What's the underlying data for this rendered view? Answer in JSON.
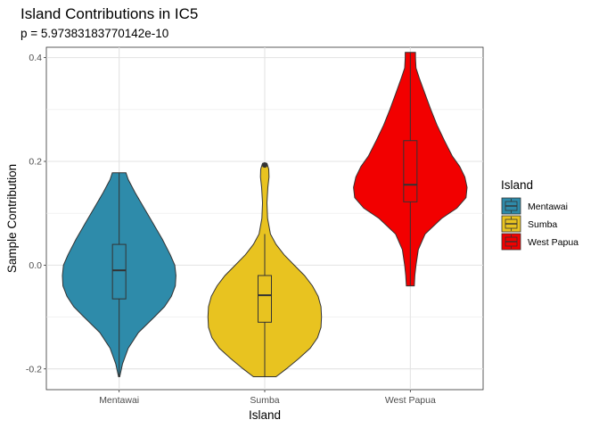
{
  "chart_data": {
    "type": "violin",
    "title": "Island Contributions in IC5",
    "subtitle": "p = 5.97383183770142e-10",
    "xlabel": "Island",
    "ylabel": "Sample Contribution",
    "ylim": [
      -0.24,
      0.42
    ],
    "yticks": [
      -0.2,
      0.0,
      0.2,
      0.4
    ],
    "ytick_labels": [
      "-0.2",
      "0.0",
      "0.2",
      "0.4"
    ],
    "grid": true,
    "legend": {
      "title": "Island",
      "placement": "right"
    },
    "categories": [
      "Mentawai",
      "Sumba",
      "West Papua"
    ],
    "series": [
      {
        "name": "Mentawai",
        "color": "#2E8BAA",
        "range": [
          -0.215,
          0.178
        ],
        "box": {
          "q1": -0.065,
          "median": -0.01,
          "q3": 0.04,
          "whisker_low": -0.215,
          "whisker_high": 0.178
        },
        "outliers": [],
        "density": [
          [
            -0.215,
            0.01
          ],
          [
            -0.19,
            0.06
          ],
          [
            -0.16,
            0.16
          ],
          [
            -0.13,
            0.34
          ],
          [
            -0.1,
            0.62
          ],
          [
            -0.08,
            0.8
          ],
          [
            -0.06,
            0.92
          ],
          [
            -0.04,
            0.99
          ],
          [
            -0.02,
            1.0
          ],
          [
            0.0,
            0.98
          ],
          [
            0.02,
            0.9
          ],
          [
            0.05,
            0.76
          ],
          [
            0.08,
            0.6
          ],
          [
            0.11,
            0.44
          ],
          [
            0.14,
            0.28
          ],
          [
            0.165,
            0.16
          ],
          [
            0.178,
            0.12
          ]
        ]
      },
      {
        "name": "Sumba",
        "color": "#E8C320",
        "range": [
          -0.215,
          0.196
        ],
        "box": {
          "q1": -0.11,
          "median": -0.058,
          "q3": -0.02,
          "whisker_low": -0.215,
          "whisker_high": 0.06
        },
        "outliers": [
          0.193
        ],
        "density": [
          [
            -0.215,
            0.2
          ],
          [
            -0.2,
            0.38
          ],
          [
            -0.18,
            0.6
          ],
          [
            -0.16,
            0.8
          ],
          [
            -0.14,
            0.93
          ],
          [
            -0.12,
            0.99
          ],
          [
            -0.1,
            1.0
          ],
          [
            -0.08,
            0.99
          ],
          [
            -0.06,
            0.94
          ],
          [
            -0.04,
            0.84
          ],
          [
            -0.02,
            0.7
          ],
          [
            0.0,
            0.52
          ],
          [
            0.02,
            0.34
          ],
          [
            0.04,
            0.2
          ],
          [
            0.06,
            0.1
          ],
          [
            0.09,
            0.05
          ],
          [
            0.12,
            0.04
          ],
          [
            0.15,
            0.055
          ],
          [
            0.17,
            0.075
          ],
          [
            0.185,
            0.07
          ],
          [
            0.196,
            0.04
          ]
        ]
      },
      {
        "name": "West Papua",
        "color": "#F20000",
        "range": [
          -0.04,
          0.41
        ],
        "box": {
          "q1": 0.122,
          "median": 0.155,
          "q3": 0.24,
          "whisker_low": -0.04,
          "whisker_high": 0.41
        },
        "outliers": [],
        "density": [
          [
            -0.04,
            0.07
          ],
          [
            -0.02,
            0.08
          ],
          [
            0.0,
            0.1
          ],
          [
            0.03,
            0.14
          ],
          [
            0.06,
            0.26
          ],
          [
            0.09,
            0.55
          ],
          [
            0.11,
            0.82
          ],
          [
            0.13,
            0.98
          ],
          [
            0.15,
            1.0
          ],
          [
            0.17,
            0.96
          ],
          [
            0.19,
            0.87
          ],
          [
            0.21,
            0.74
          ],
          [
            0.24,
            0.6
          ],
          [
            0.27,
            0.47
          ],
          [
            0.3,
            0.36
          ],
          [
            0.33,
            0.26
          ],
          [
            0.36,
            0.16
          ],
          [
            0.38,
            0.1
          ],
          [
            0.4,
            0.09
          ],
          [
            0.41,
            0.09
          ]
        ]
      }
    ]
  }
}
